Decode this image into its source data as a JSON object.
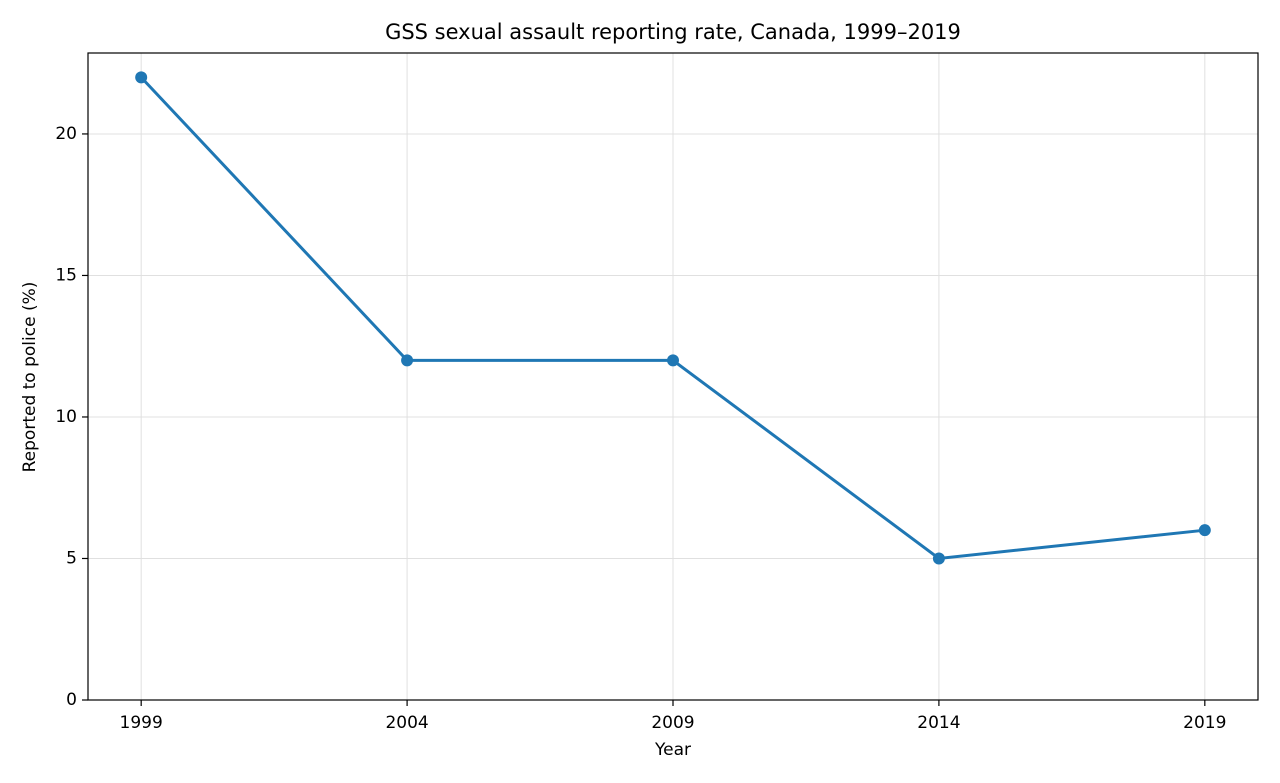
{
  "chart_data": {
    "type": "line",
    "title": "GSS sexual assault reporting rate, Canada, 1999–2019",
    "x_label": "Year",
    "y_label": "Reported to police (%)",
    "x": [
      1999,
      2004,
      2009,
      2014,
      2019
    ],
    "series": [
      {
        "name": "Reported to police (%)",
        "color": "#1f77b4",
        "values": [
          22,
          12,
          12,
          5,
          6
        ]
      }
    ],
    "xlim": [
      1998,
      2020
    ],
    "xticks": [
      1999,
      2004,
      2009,
      2014,
      2019
    ],
    "ylim": [
      0,
      22.86
    ],
    "yticks": [
      0,
      5,
      10,
      15,
      20
    ],
    "grid": true
  }
}
